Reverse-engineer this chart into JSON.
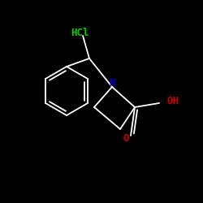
{
  "background_color": "#000000",
  "hcl_text": "HCl",
  "hcl_color": "#00cc00",
  "hcl_fontsize": 9,
  "N_text": "N",
  "N_color": "#0000cc",
  "N_fontsize": 9,
  "O_text": "O",
  "O_color": "#cc0000",
  "O_fontsize": 9,
  "OH_text": "OH",
  "OH_color": "#cc0000",
  "OH_fontsize": 9,
  "bond_color": "#ffffff",
  "bond_lw": 1.3,
  "figsize": [
    2.5,
    2.5
  ],
  "dpi": 100
}
